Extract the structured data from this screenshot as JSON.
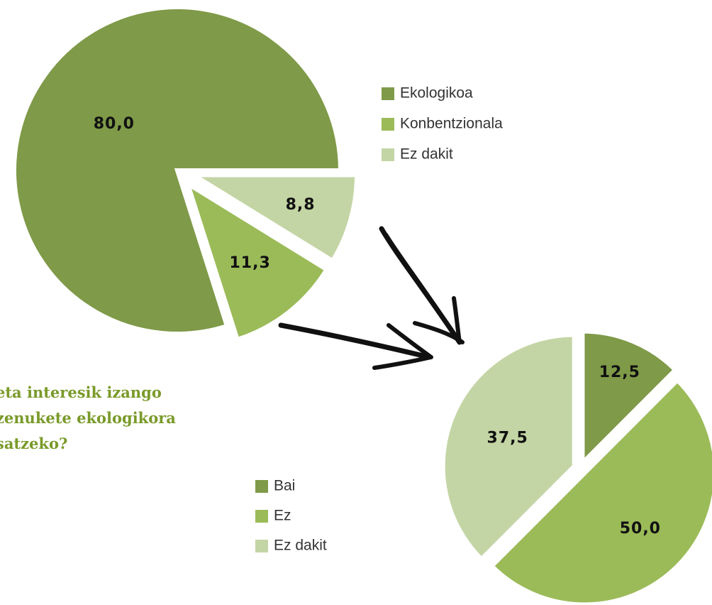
{
  "question": [
    "eta interesik izango",
    "zenukete ekologikora",
    "satzeko?"
  ],
  "chart_data": [
    {
      "type": "pie",
      "categories": [
        "Ekologikoa",
        "Konbentzionala",
        "Ez dakit"
      ],
      "values": [
        80.0,
        11.3,
        8.8
      ],
      "value_labels": [
        "80,0",
        "11,3",
        "8,8"
      ],
      "colors": [
        "#7f9a48",
        "#9bbb59",
        "#c4d5a5"
      ]
    },
    {
      "type": "pie",
      "categories": [
        "Bai",
        "Ez",
        "Ez dakit"
      ],
      "values": [
        12.5,
        50.0,
        37.5
      ],
      "value_labels": [
        "12,5",
        "50,0",
        "37,5"
      ],
      "colors": [
        "#7f9a48",
        "#9bbb59",
        "#c4d5a5"
      ]
    }
  ]
}
